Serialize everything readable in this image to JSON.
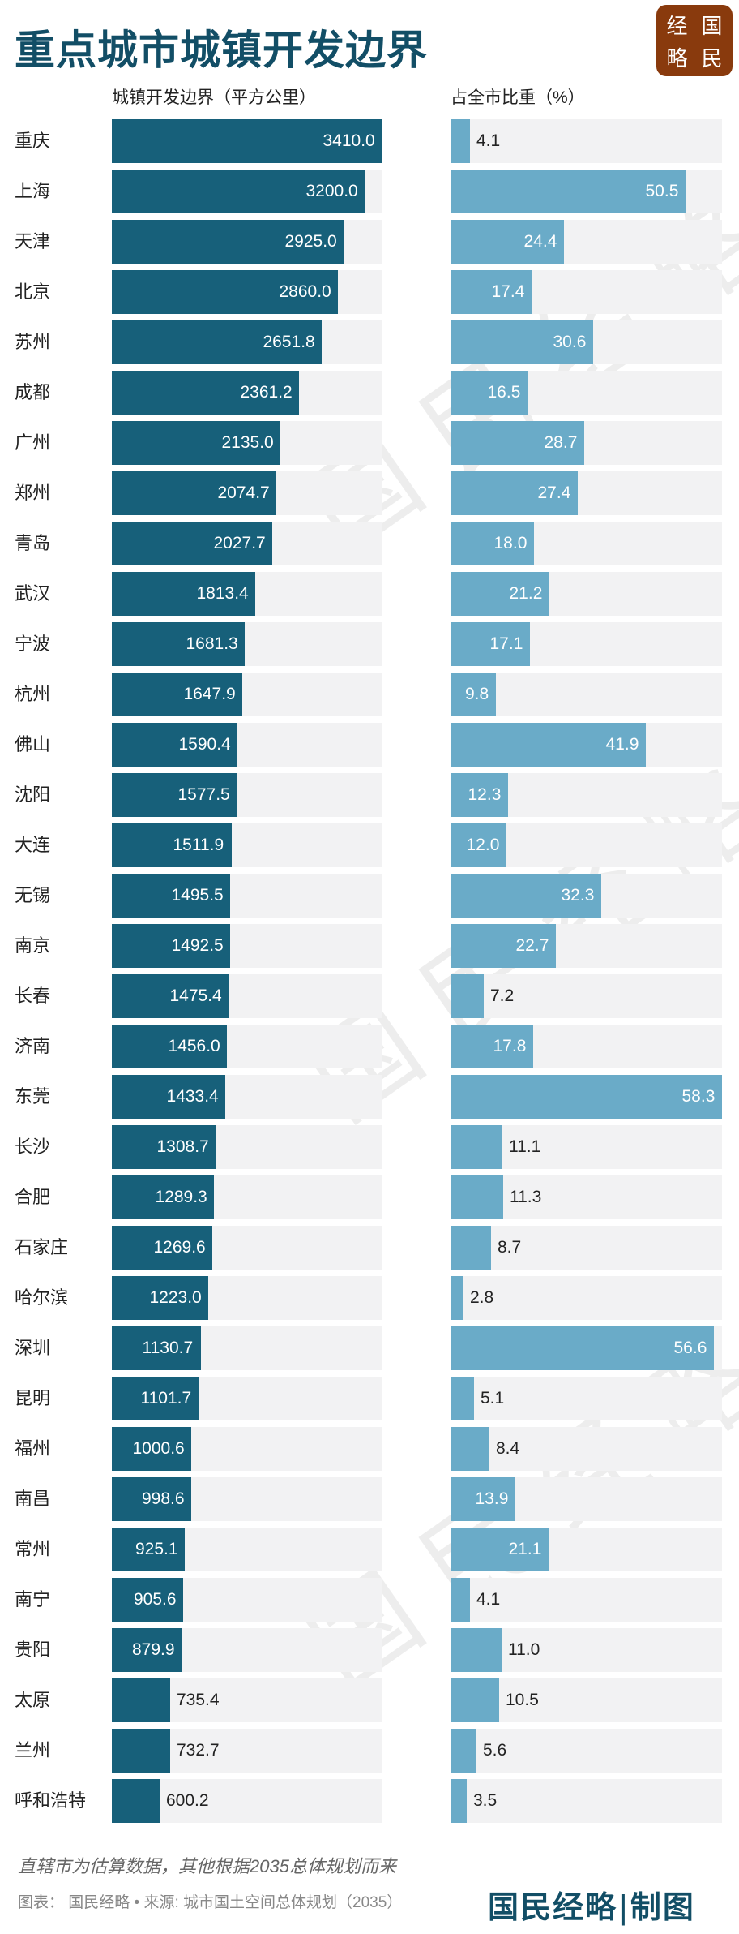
{
  "title": "重点城市城镇开发边界",
  "logo": {
    "chars": [
      "经",
      "国",
      "略",
      "民"
    ],
    "color": "#893a0d"
  },
  "watermark": "国民经略",
  "colors": {
    "title": "#124e66",
    "area_bar": "#17607a",
    "share_bar": "#6aabc8",
    "track": "#f2f2f3"
  },
  "chart_data": [
    {
      "type": "bar",
      "orientation": "horizontal",
      "title": "城镇开发边界（平方公里）",
      "categories": [
        "重庆",
        "上海",
        "天津",
        "北京",
        "苏州",
        "成都",
        "广州",
        "郑州",
        "青岛",
        "武汉",
        "宁波",
        "杭州",
        "佛山",
        "沈阳",
        "大连",
        "无锡",
        "南京",
        "长春",
        "济南",
        "东莞",
        "长沙",
        "合肥",
        "石家庄",
        "哈尔滨",
        "深圳",
        "昆明",
        "福州",
        "南昌",
        "常州",
        "南宁",
        "贵阳",
        "太原",
        "兰州",
        "呼和浩特"
      ],
      "values": [
        3410.0,
        3200.0,
        2925.0,
        2860.0,
        2651.8,
        2361.2,
        2135.0,
        2074.7,
        2027.7,
        1813.4,
        1681.3,
        1647.9,
        1590.4,
        1577.5,
        1511.9,
        1495.5,
        1492.5,
        1475.4,
        1456.0,
        1433.4,
        1308.7,
        1289.3,
        1269.6,
        1223.0,
        1130.7,
        1101.7,
        1000.6,
        998.6,
        925.1,
        905.6,
        879.9,
        735.4,
        732.7,
        600.2
      ],
      "xlim": [
        0,
        3410
      ],
      "grid": false
    },
    {
      "type": "bar",
      "orientation": "horizontal",
      "title": "占全市比重（%）",
      "values": [
        4.1,
        50.5,
        24.4,
        17.4,
        30.6,
        16.5,
        28.7,
        27.4,
        18.0,
        21.2,
        17.1,
        9.8,
        41.9,
        12.3,
        12.0,
        32.3,
        22.7,
        7.2,
        17.8,
        58.3,
        11.1,
        11.3,
        8.7,
        2.8,
        56.6,
        5.1,
        8.4,
        13.9,
        21.1,
        4.1,
        11.0,
        10.5,
        5.6,
        3.5
      ],
      "xlim": [
        0,
        58.3
      ],
      "grid": false
    }
  ],
  "footer": {
    "note": "直辖市为估算数据，其他根据2035总体规划而来",
    "source": "图表： 国民经略 • 来源: 城市国土空间总体规划（2035）",
    "brand": "国民经略|制图"
  }
}
